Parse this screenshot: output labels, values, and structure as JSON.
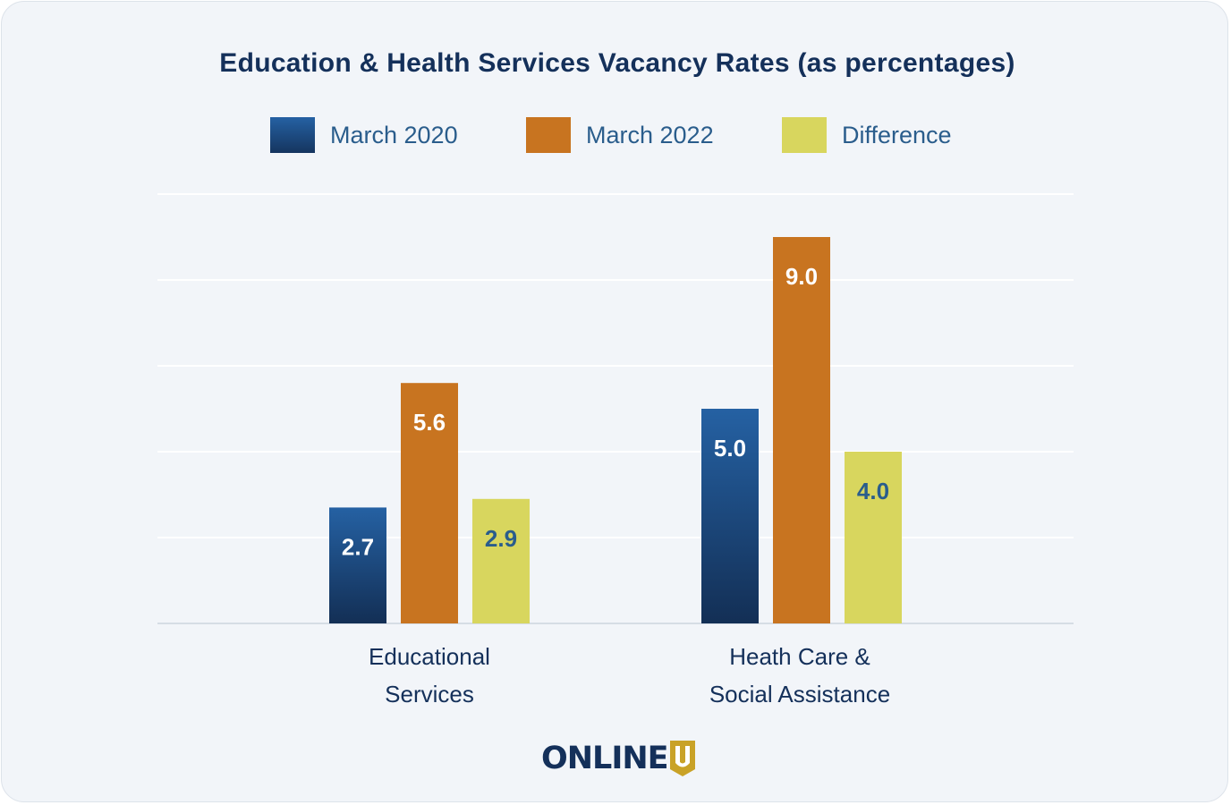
{
  "chart_data": {
    "type": "bar",
    "title": "Education & Health Services Vacancy Rates (as percentages)",
    "categories": [
      "Educational Services",
      "Heath Care & Social Assistance"
    ],
    "category_lines": [
      [
        "Educational",
        "Services"
      ],
      [
        "Heath Care &",
        "Social Assistance"
      ]
    ],
    "series": [
      {
        "name": "March 2020",
        "values": [
          2.7,
          5.0
        ],
        "color": "#1f4f8a",
        "label_color": "#ffffff"
      },
      {
        "name": "March 2022",
        "values": [
          5.6,
          9.0
        ],
        "color": "#c87420",
        "label_color": "#ffffff"
      },
      {
        "name": "Difference",
        "values": [
          2.9,
          4.0
        ],
        "color": "#d8d65e",
        "label_color": "#2a5d8c"
      }
    ],
    "value_labels": [
      [
        "2.7",
        "5.0"
      ],
      [
        "5.6",
        "9.0"
      ],
      [
        "2.9",
        "4.0"
      ]
    ],
    "ylim": [
      0,
      10
    ],
    "grid": true,
    "legend_position": "top-center",
    "xlabel": "",
    "ylabel": ""
  },
  "logo": {
    "text": "ONLINE",
    "mark": "U"
  }
}
